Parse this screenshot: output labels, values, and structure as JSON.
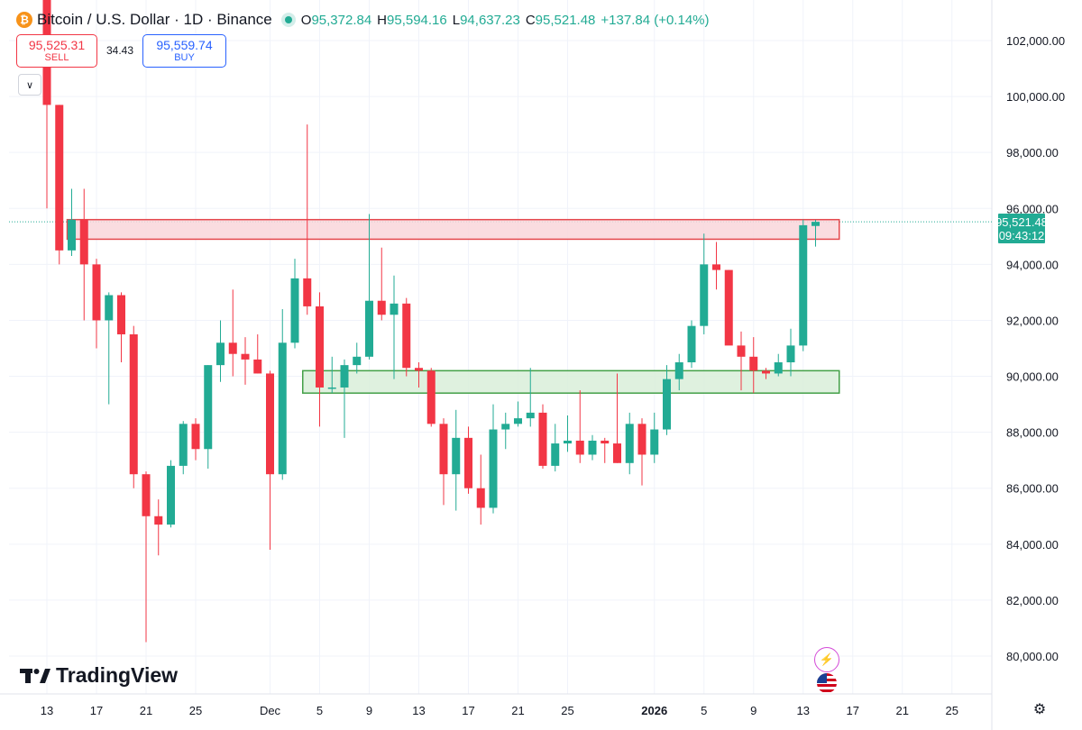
{
  "header": {
    "symbol_title": "Bitcoin / U.S. Dollar · 1D · Binance",
    "ohlc": {
      "o_label": "O",
      "o_value": "95,372.84",
      "h_label": "H",
      "h_value": "95,594.16",
      "l_label": "L",
      "l_value": "94,637.23",
      "c_label": "C",
      "c_value": "95,521.48",
      "change": "+137.84 (+0.14%)"
    }
  },
  "trade": {
    "sell_price": "95,525.31",
    "sell_label": "SELL",
    "spread": "34.43",
    "buy_price": "95,559.74",
    "buy_label": "BUY"
  },
  "price_tag": {
    "price": "95,521.48",
    "countdown": "09:43:12"
  },
  "brand": {
    "logo_text": "TradingView"
  },
  "icons": {
    "collapse": "chevron-down-icon",
    "settings": "gear-icon",
    "ai": "sparkle-icon",
    "flag": "us-flag-icon",
    "symbol": "bitcoin-icon"
  },
  "colors": {
    "up": "#22ab94",
    "down": "#f23645",
    "resistance_fill": "#f9d6da",
    "resistance_border": "#e5484d",
    "support_fill": "#d9efd9",
    "support_border": "#43a047"
  },
  "chart_data": {
    "type": "candlestick",
    "yaxis": {
      "ticks": [
        80000,
        82000,
        84000,
        86000,
        88000,
        90000,
        92000,
        94000,
        96000,
        98000,
        100000,
        102000
      ],
      "ylim": [
        78800,
        103100
      ]
    },
    "xaxis": {
      "ticks": [
        {
          "label": "13",
          "day": 0
        },
        {
          "label": "17",
          "day": 4
        },
        {
          "label": "21",
          "day": 8
        },
        {
          "label": "25",
          "day": 12
        },
        {
          "label": "Dec",
          "day": 18
        },
        {
          "label": "5",
          "day": 22
        },
        {
          "label": "9",
          "day": 26
        },
        {
          "label": "13",
          "day": 30
        },
        {
          "label": "17",
          "day": 34
        },
        {
          "label": "21",
          "day": 38
        },
        {
          "label": "25",
          "day": 42
        },
        {
          "label": "2026",
          "day": 49,
          "bold": true
        },
        {
          "label": "5",
          "day": 53
        },
        {
          "label": "9",
          "day": 57
        },
        {
          "label": "13",
          "day": 61
        },
        {
          "label": "17",
          "day": 65
        },
        {
          "label": "21",
          "day": 69
        },
        {
          "label": "25",
          "day": 73
        }
      ]
    },
    "candles": [
      {
        "o": 104000,
        "h": 104000,
        "l": 96000,
        "c": 99700
      },
      {
        "o": 99700,
        "h": 99700,
        "l": 94000,
        "c": 94500
      },
      {
        "o": 94500,
        "h": 96700,
        "l": 94300,
        "c": 95600
      },
      {
        "o": 95600,
        "h": 96700,
        "l": 92000,
        "c": 94000
      },
      {
        "o": 94000,
        "h": 94200,
        "l": 91000,
        "c": 92000
      },
      {
        "o": 92000,
        "h": 93000,
        "l": 89000,
        "c": 92900
      },
      {
        "o": 92900,
        "h": 93000,
        "l": 90500,
        "c": 91500
      },
      {
        "o": 91500,
        "h": 91800,
        "l": 86000,
        "c": 86500
      },
      {
        "o": 86500,
        "h": 86600,
        "l": 80500,
        "c": 85000
      },
      {
        "o": 85000,
        "h": 85600,
        "l": 83600,
        "c": 84700
      },
      {
        "o": 84700,
        "h": 87000,
        "l": 84600,
        "c": 86800
      },
      {
        "o": 86800,
        "h": 88400,
        "l": 86500,
        "c": 88300
      },
      {
        "o": 88300,
        "h": 88500,
        "l": 87000,
        "c": 87400
      },
      {
        "o": 87400,
        "h": 90400,
        "l": 86700,
        "c": 90400
      },
      {
        "o": 90400,
        "h": 92000,
        "l": 89800,
        "c": 91200
      },
      {
        "o": 91200,
        "h": 93100,
        "l": 90000,
        "c": 90800
      },
      {
        "o": 90800,
        "h": 91400,
        "l": 89700,
        "c": 90600
      },
      {
        "o": 90600,
        "h": 91500,
        "l": 90100,
        "c": 90100
      },
      {
        "o": 90100,
        "h": 90200,
        "l": 83800,
        "c": 86500
      },
      {
        "o": 86500,
        "h": 92400,
        "l": 86300,
        "c": 91200
      },
      {
        "o": 91200,
        "h": 94200,
        "l": 91000,
        "c": 93500
      },
      {
        "o": 93500,
        "h": 99000,
        "l": 92200,
        "c": 92500
      },
      {
        "o": 92500,
        "h": 93000,
        "l": 88200,
        "c": 89600
      },
      {
        "o": 89600,
        "h": 90700,
        "l": 89400,
        "c": 89600
      },
      {
        "o": 89600,
        "h": 90600,
        "l": 87800,
        "c": 90400
      },
      {
        "o": 90400,
        "h": 91200,
        "l": 90100,
        "c": 90700
      },
      {
        "o": 90700,
        "h": 95800,
        "l": 90600,
        "c": 92700
      },
      {
        "o": 92700,
        "h": 94600,
        "l": 92000,
        "c": 92200
      },
      {
        "o": 92200,
        "h": 93600,
        "l": 89900,
        "c": 92600
      },
      {
        "o": 92600,
        "h": 92800,
        "l": 90000,
        "c": 90300
      },
      {
        "o": 90300,
        "h": 90500,
        "l": 89600,
        "c": 90200
      },
      {
        "o": 90200,
        "h": 90300,
        "l": 88200,
        "c": 88300
      },
      {
        "o": 88300,
        "h": 88500,
        "l": 85400,
        "c": 86500
      },
      {
        "o": 86500,
        "h": 88800,
        "l": 85200,
        "c": 87800
      },
      {
        "o": 87800,
        "h": 88200,
        "l": 85800,
        "c": 86000
      },
      {
        "o": 86000,
        "h": 87200,
        "l": 84700,
        "c": 85300
      },
      {
        "o": 85300,
        "h": 89000,
        "l": 85100,
        "c": 88100
      },
      {
        "o": 88100,
        "h": 88700,
        "l": 87400,
        "c": 88300
      },
      {
        "o": 88300,
        "h": 89100,
        "l": 88200,
        "c": 88500
      },
      {
        "o": 88500,
        "h": 90300,
        "l": 88200,
        "c": 88700
      },
      {
        "o": 88700,
        "h": 89000,
        "l": 86700,
        "c": 86800
      },
      {
        "o": 86800,
        "h": 88300,
        "l": 86600,
        "c": 87600
      },
      {
        "o": 87600,
        "h": 88600,
        "l": 87300,
        "c": 87700
      },
      {
        "o": 87700,
        "h": 89500,
        "l": 86900,
        "c": 87200
      },
      {
        "o": 87200,
        "h": 87900,
        "l": 87000,
        "c": 87700
      },
      {
        "o": 87700,
        "h": 87800,
        "l": 86900,
        "c": 87600
      },
      {
        "o": 87600,
        "h": 90100,
        "l": 86900,
        "c": 86900
      },
      {
        "o": 86900,
        "h": 88700,
        "l": 86500,
        "c": 88300
      },
      {
        "o": 88300,
        "h": 88500,
        "l": 86100,
        "c": 87200
      },
      {
        "o": 87200,
        "h": 88700,
        "l": 86900,
        "c": 88100
      },
      {
        "o": 88100,
        "h": 90400,
        "l": 87900,
        "c": 89900
      },
      {
        "o": 89900,
        "h": 90800,
        "l": 89500,
        "c": 90500
      },
      {
        "o": 90500,
        "h": 92000,
        "l": 90300,
        "c": 91800
      },
      {
        "o": 91800,
        "h": 95100,
        "l": 91500,
        "c": 94000
      },
      {
        "o": 94000,
        "h": 94800,
        "l": 93100,
        "c": 93800
      },
      {
        "o": 93800,
        "h": 93800,
        "l": 91200,
        "c": 91100
      },
      {
        "o": 91100,
        "h": 91600,
        "l": 89500,
        "c": 90700
      },
      {
        "o": 90700,
        "h": 91400,
        "l": 89400,
        "c": 90200
      },
      {
        "o": 90200,
        "h": 90300,
        "l": 89900,
        "c": 90100
      },
      {
        "o": 90100,
        "h": 90800,
        "l": 90000,
        "c": 90500
      },
      {
        "o": 90500,
        "h": 91700,
        "l": 90000,
        "c": 91100
      },
      {
        "o": 91100,
        "h": 95600,
        "l": 90900,
        "c": 95400
      },
      {
        "o": 95372.84,
        "h": 95594.16,
        "l": 94637.23,
        "c": 95521.48
      }
    ],
    "zones": [
      {
        "name": "resistance",
        "y_low": 94900,
        "y_high": 95600,
        "from_day": 2,
        "to_day": 65
      },
      {
        "name": "support",
        "y_low": 89400,
        "y_high": 90200,
        "from_day": 21,
        "to_day": 65
      }
    ],
    "last_price_line": 95521.48
  }
}
